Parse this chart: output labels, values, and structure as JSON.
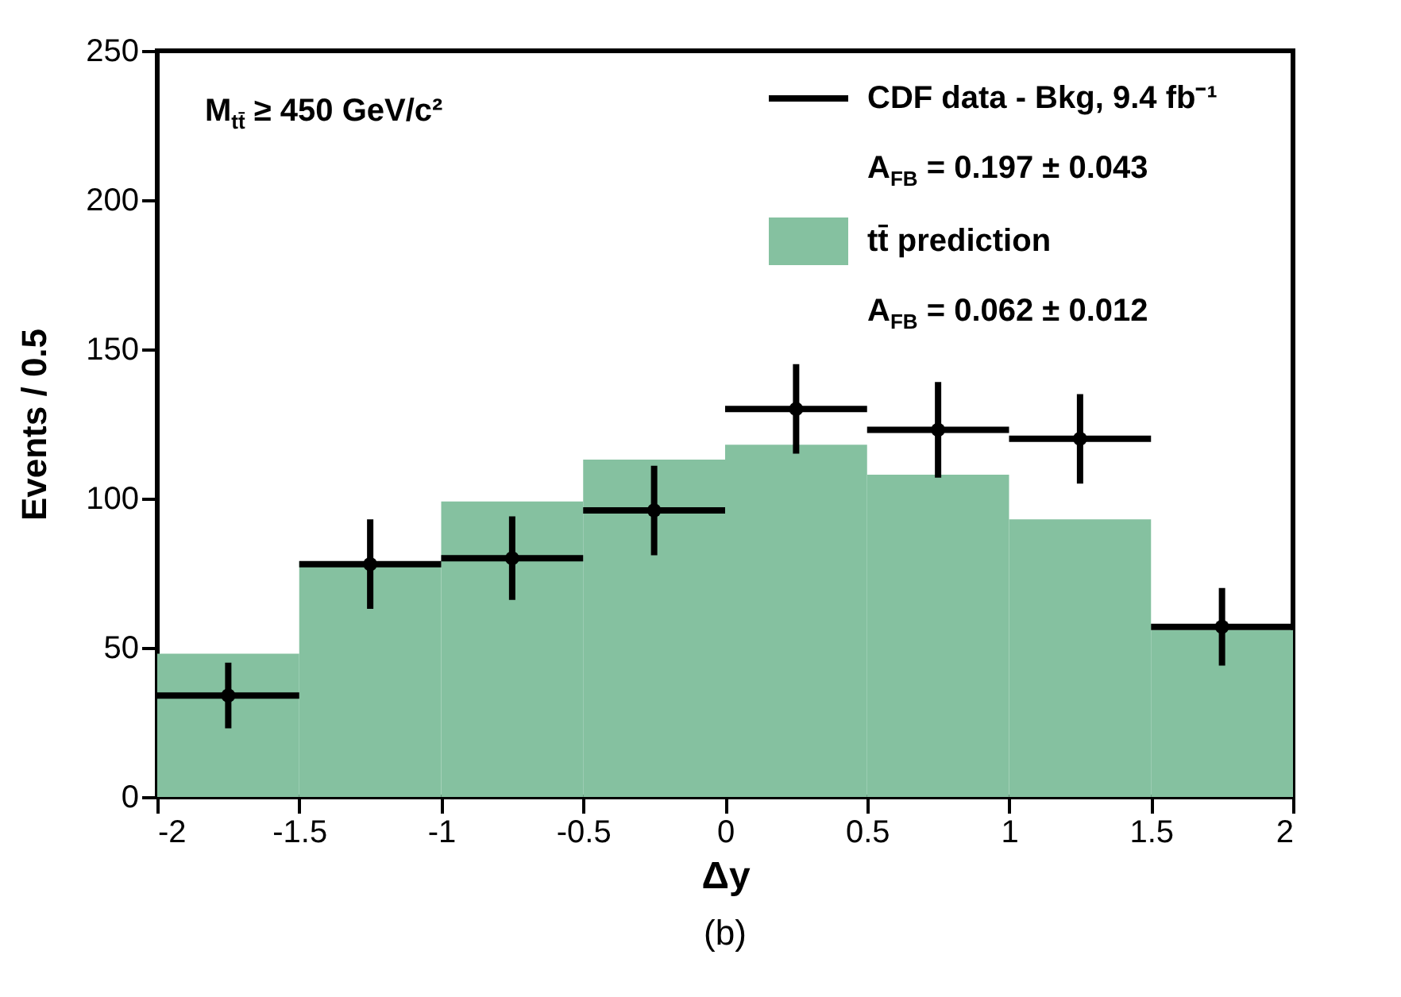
{
  "chart_data": {
    "type": "histogram",
    "xlabel": "Δy",
    "ylabel": "Events / 0.5",
    "bins": [
      -2,
      -1.5,
      -1,
      -0.5,
      0,
      0.5,
      1,
      1.5,
      2
    ],
    "series": [
      {
        "name": "tt̄ prediction",
        "color": "#85c1a0",
        "values": [
          48,
          79,
          99,
          113,
          118,
          108,
          93,
          56
        ]
      },
      {
        "name": "CDF data - Bkg, 9.4  fb⁻¹",
        "type": "scatter",
        "color": "#000000",
        "x": [
          -1.75,
          -1.25,
          -0.75,
          -0.25,
          0.25,
          0.75,
          1.25,
          1.75
        ],
        "values": [
          34,
          78,
          80,
          96,
          130,
          123,
          120,
          57
        ],
        "errors": [
          11,
          15,
          14,
          15,
          15,
          16,
          15,
          13
        ],
        "xerrors": [
          0.25,
          0.25,
          0.25,
          0.25,
          0.25,
          0.25,
          0.25,
          0.25
        ]
      }
    ],
    "annotations": [
      "M$_{tt̄}$ ≥ 450 GeV/c²",
      "A$_{FB}$ = 0.197 ± 0.043",
      "A$_{FB}$ = 0.062 ± 0.012",
      "(b)"
    ],
    "xlim": [
      -2,
      2
    ],
    "xticks": [
      -2,
      -1.5,
      -1,
      -0.5,
      0,
      0.5,
      1,
      1.5,
      2
    ],
    "ylim": [
      0,
      250
    ],
    "yticks": [
      0,
      50,
      100,
      150,
      200,
      250
    ],
    "grid": false,
    "legend": "top right",
    "marker": "circle"
  }
}
